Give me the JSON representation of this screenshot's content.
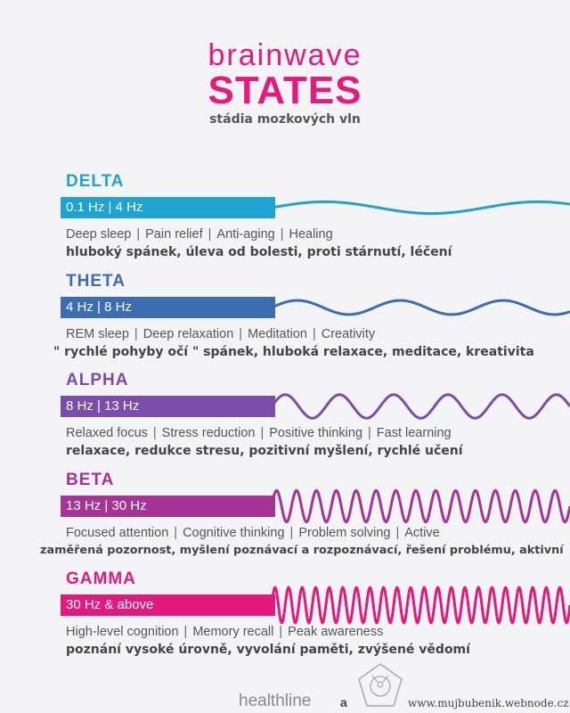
{
  "header": {
    "title_small": "brainwave",
    "title_big": "STATES",
    "subtitle": "stádia mozkových vln"
  },
  "sections": [
    {
      "name": "DELTA",
      "range": "0.1 Hz | 4 Hz",
      "color": "#1fa3d1",
      "cycles": 1.4,
      "amplitude": 0.15,
      "english": [
        "Deep sleep",
        "Pain relief",
        "Anti-aging",
        "Healing"
      ],
      "czech": "hluboký spánek, úleva od bolesti, proti stárnutí, léčení"
    },
    {
      "name": "THETA",
      "range": "4 Hz | 8 Hz",
      "color": "#3a6db2",
      "cycles": 2.9,
      "amplitude": 0.18,
      "english": [
        "REM sleep",
        "Deep relaxation",
        "Meditation",
        "Creativity"
      ],
      "czech": "\" rychlé pohyby očí \" spánek, hluboká relaxace, meditace, kreativita"
    },
    {
      "name": "ALPHA",
      "range": "8 Hz | 13 Hz",
      "color": "#7a4ea8",
      "cycles": 5.5,
      "amplitude": 0.3,
      "english": [
        "Relaxed focus",
        "Stress reduction",
        "Positive thinking",
        "Fast learning"
      ],
      "czech": "relaxace, redukce stresu, pozitivní myšlení, rychlé učení"
    },
    {
      "name": "BETA",
      "range": "13 Hz | 30 Hz",
      "color": "#a63495",
      "cycles": 15,
      "amplitude": 0.4,
      "english": [
        "Focused attention",
        "Cognitive thinking",
        "Problem solving",
        "Active"
      ],
      "czech": "zaměřená pozornost, myšlení poznávací a rozpoznávací, řešení problému, aktivní"
    },
    {
      "name": "GAMMA",
      "range": "30 Hz & above",
      "color": "#e3197d",
      "cycles": 22,
      "amplitude": 0.45,
      "english": [
        "High-level cognition",
        "Memory recall",
        "Peak awareness"
      ],
      "czech": "poznání vysoké úrovně, vyvolání paměti, zvýšené vědomí"
    }
  ],
  "footer": {
    "brand": "healthline",
    "conjunction": "a",
    "url": "www.mujbubenik.webnode.cz"
  }
}
